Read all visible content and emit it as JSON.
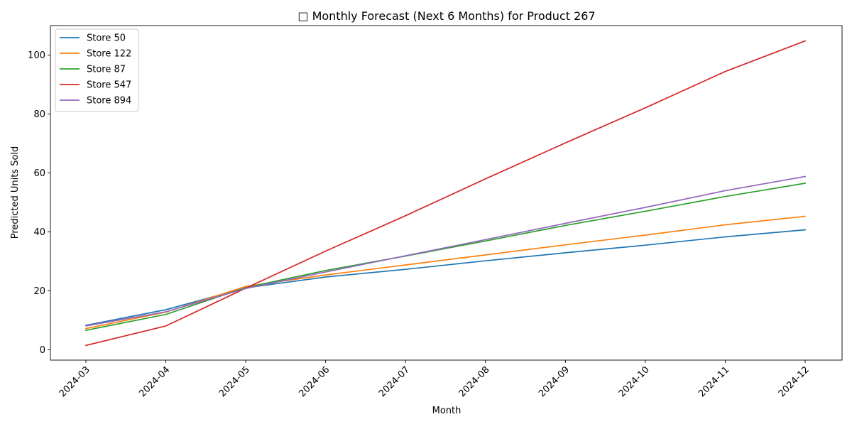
{
  "chart_data": {
    "type": "line",
    "title": "□ Monthly Forecast (Next 6 Months) for Product 267",
    "xlabel": "Month",
    "ylabel": "Predicted Units Sold",
    "categories": [
      "2024-03",
      "2024-04",
      "2024-05",
      "2024-06",
      "2024-07",
      "2024-08",
      "2024-09",
      "2024-10",
      "2024-11",
      "2024-12"
    ],
    "ylim": [
      -3.5,
      110
    ],
    "yticks": [
      0,
      20,
      40,
      60,
      80,
      100
    ],
    "grid": false,
    "legend_position": "top-left",
    "series": [
      {
        "name": "Store 50",
        "color": "#1f77b4",
        "values": [
          8.3,
          13.6,
          21.0,
          24.7,
          27.3,
          30.2,
          32.9,
          35.5,
          38.3,
          40.7
        ]
      },
      {
        "name": "Store 122",
        "color": "#ff7f0e",
        "values": [
          7.2,
          12.8,
          21.5,
          25.4,
          28.8,
          32.2,
          35.6,
          38.9,
          42.4,
          45.3
        ]
      },
      {
        "name": "Store 87",
        "color": "#2ca02c",
        "values": [
          6.6,
          12.0,
          21.1,
          26.9,
          31.8,
          36.9,
          42.2,
          47.0,
          52.0,
          56.5
        ]
      },
      {
        "name": "Store 547",
        "color": "#d62728",
        "values": [
          1.5,
          8.1,
          20.9,
          33.5,
          45.5,
          58.0,
          70.2,
          82.1,
          94.4,
          104.8
        ]
      },
      {
        "name": "Store 894",
        "color": "#9467bd",
        "values": [
          8.1,
          12.9,
          20.8,
          26.4,
          31.9,
          37.4,
          42.9,
          48.3,
          54.0,
          58.8
        ]
      }
    ]
  }
}
